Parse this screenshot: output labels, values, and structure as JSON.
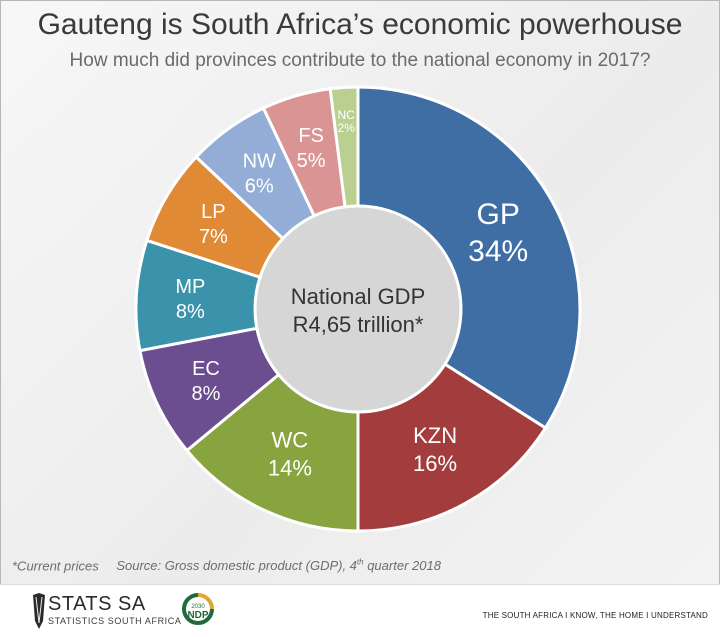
{
  "header": {
    "title": "Gauteng is South Africa’s economic powerhouse",
    "subtitle": "How much did provinces contribute to the national economy in 2017?"
  },
  "center": {
    "line1": "National GDP",
    "line2": "R4,65 trillion*"
  },
  "footnote": {
    "note": "*Current prices",
    "source_prefix": "Source: Gross domestic product (GDP), 4",
    "source_sup": "th",
    "source_suffix": " quarter 2018"
  },
  "footer": {
    "logo_main": "STATS SA",
    "logo_sub": "STATISTICS SOUTH AFRICA",
    "ndp_text": "NDP",
    "ndp_year": "2030",
    "tagline": "THE SOUTH AFRICA I KNOW, THE HOME I UNDERSTAND"
  },
  "chart_data": {
    "type": "pie",
    "subtype": "donut",
    "title": "Gauteng is South Africa’s economic powerhouse",
    "subtitle": "How much did provinces contribute to the national economy in 2017?",
    "unit": "%",
    "slices": [
      {
        "label": "GP",
        "value": 34,
        "display": "34%",
        "color": "#3f6ea5"
      },
      {
        "label": "KZN",
        "value": 16,
        "display": "16%",
        "color": "#a33d3d"
      },
      {
        "label": "WC",
        "value": 14,
        "display": "14%",
        "color": "#87a43f"
      },
      {
        "label": "EC",
        "value": 8,
        "display": "8%",
        "color": "#6b4e8f"
      },
      {
        "label": "MP",
        "value": 8,
        "display": "8%",
        "color": "#3a93aa"
      },
      {
        "label": "LP",
        "value": 7,
        "display": "7%",
        "color": "#e08a36"
      },
      {
        "label": "NW",
        "value": 6,
        "display": "6%",
        "color": "#94add6"
      },
      {
        "label": "FS",
        "value": 5,
        "display": "5%",
        "color": "#d99493"
      },
      {
        "label": "NC",
        "value": 2,
        "display": "2%",
        "color": "#b9d090"
      }
    ]
  }
}
